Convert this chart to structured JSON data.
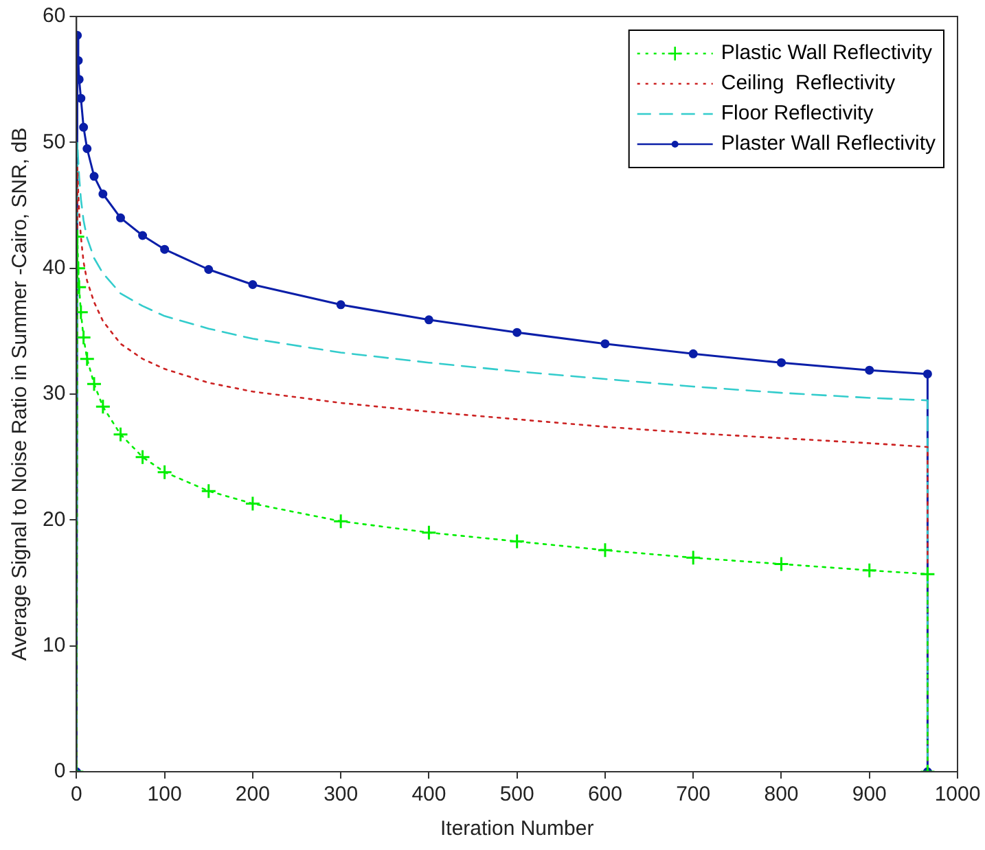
{
  "chart_data": {
    "type": "line",
    "xlabel": "Iteration Number",
    "ylabel": "Average Signal to Noise Ratio in Summer -Cairo, SNR, dB",
    "x": [
      0,
      1,
      2,
      3,
      5,
      8,
      12,
      20,
      30,
      50,
      75,
      100,
      150,
      200,
      300,
      400,
      500,
      600,
      700,
      800,
      900,
      966,
      966
    ],
    "xlim": [
      0,
      1000
    ],
    "xticks": [
      0,
      100,
      200,
      300,
      400,
      500,
      600,
      700,
      800,
      900,
      1000
    ],
    "ylim": [
      0,
      60
    ],
    "yticks": [
      0,
      10,
      20,
      30,
      40,
      50,
      60
    ],
    "grid": false,
    "legend": "top right",
    "series": [
      {
        "name": "Plastic Wall Reflectivity",
        "color": "#00ee00",
        "marker": "cross",
        "line_style": "dotted",
        "values": [
          0,
          42.5,
          40,
          38.5,
          36.5,
          34.5,
          32.8,
          30.8,
          29,
          26.8,
          25,
          23.8,
          22.3,
          21.3,
          19.9,
          19,
          18.3,
          17.6,
          17,
          16.5,
          16,
          15.7,
          0
        ]
      },
      {
        "name": "Ceiling  Reflectivity",
        "color": "#cc2222",
        "marker": "none",
        "line_style": "dotted",
        "values": [
          0,
          48,
          46,
          44.5,
          42.5,
          40.5,
          39,
          37.3,
          35.8,
          34,
          32.8,
          32,
          30.9,
          30.2,
          29.3,
          28.6,
          28,
          27.4,
          26.9,
          26.5,
          26.1,
          25.8,
          0
        ]
      },
      {
        "name": "Floor Reflectivity",
        "color": "#33cccc",
        "marker": "none",
        "line_style": "dashed",
        "values": [
          0,
          50,
          48.5,
          47.3,
          45.5,
          43.8,
          42.4,
          40.8,
          39.6,
          38,
          37,
          36.2,
          35.2,
          34.4,
          33.3,
          32.5,
          31.8,
          31.2,
          30.6,
          30.1,
          29.7,
          29.5,
          0
        ]
      },
      {
        "name": "Plaster Wall Reflectivity",
        "color": "#0a1ea8",
        "marker": "circle",
        "line_style": "solid",
        "values": [
          0,
          58.5,
          56.5,
          55,
          53.5,
          51.2,
          49.5,
          47.3,
          45.9,
          44,
          42.6,
          41.5,
          39.9,
          38.7,
          37.1,
          35.9,
          34.9,
          34,
          33.2,
          32.5,
          31.9,
          31.6,
          0
        ]
      }
    ]
  }
}
